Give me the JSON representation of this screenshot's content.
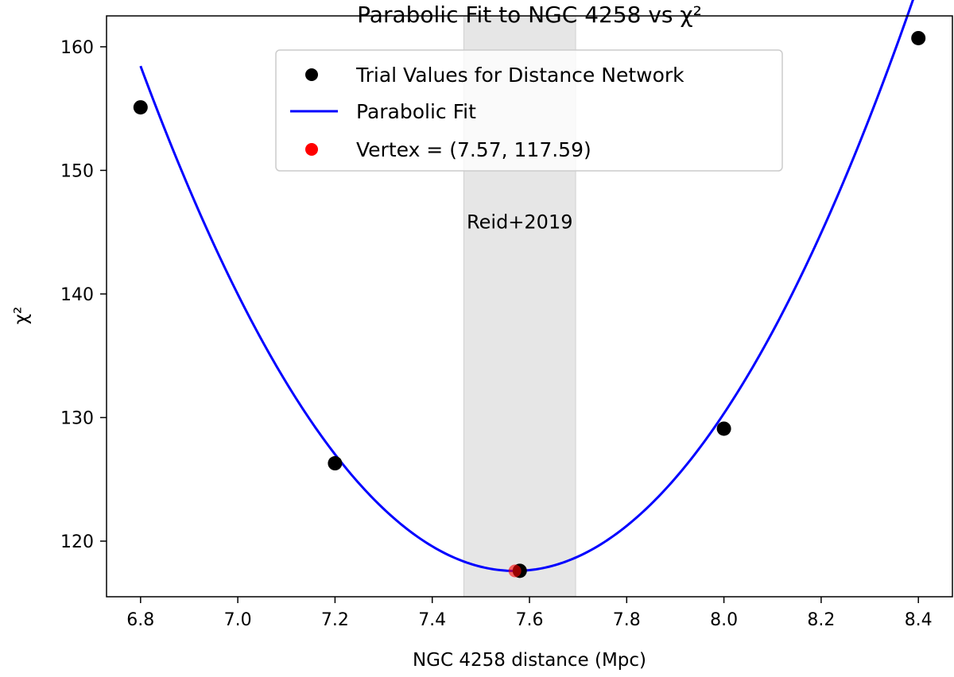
{
  "chart_data": {
    "type": "scatter",
    "title": "Parabolic Fit to NGC 4258 vs χ²",
    "xlabel": "NGC 4258 distance (Mpc)",
    "ylabel": "χ²",
    "xlim": [
      6.73,
      8.47
    ],
    "ylim": [
      115.5,
      162.5
    ],
    "x_ticks": [
      6.8,
      7.0,
      7.2,
      7.4,
      7.6,
      7.8,
      8.0,
      8.2,
      8.4
    ],
    "x_tick_labels": [
      "6.8",
      "7.0",
      "7.2",
      "7.4",
      "7.6",
      "7.8",
      "8.0",
      "8.2",
      "8.4"
    ],
    "y_ticks": [
      120,
      130,
      140,
      150,
      160
    ],
    "y_tick_labels": [
      "120",
      "130",
      "140",
      "150",
      "160"
    ],
    "grid": false,
    "legend_position": "top-center",
    "series": [
      {
        "name": "Trial Values for Distance Network",
        "kind": "scatter",
        "color": "#000000",
        "x": [
          6.8,
          7.2,
          7.58,
          8.0,
          8.4
        ],
        "y": [
          155.1,
          126.3,
          117.6,
          129.1,
          160.7
        ]
      },
      {
        "name": "Parabolic Fit",
        "kind": "line",
        "color": "#0000ff",
        "x_range": [
          6.8,
          8.4
        ],
        "coefficients": {
          "a": 68.9,
          "h": 7.57,
          "k": 117.59
        }
      },
      {
        "name": "Vertex = (7.57, 117.59)",
        "kind": "scatter",
        "color": "#ff0000",
        "x": [
          7.57
        ],
        "y": [
          117.59
        ]
      }
    ],
    "band": {
      "label": "Reid+2019",
      "x_min": 7.465,
      "x_max": 7.695,
      "label_y": 145.8,
      "color": "#e6e6e6"
    }
  }
}
